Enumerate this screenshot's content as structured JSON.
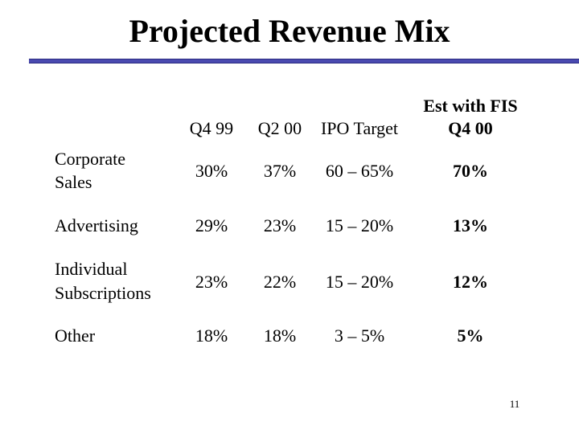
{
  "slide": {
    "title": "Projected Revenue Mix",
    "page_number": "11",
    "accent_color": "#4a4ab0"
  },
  "table": {
    "columns": [
      {
        "label": "Q4 99",
        "bold": false
      },
      {
        "label": "Q2 00",
        "bold": false
      },
      {
        "label": "IPO Target",
        "bold": false
      },
      {
        "label_line1": "Est with FIS",
        "label_line2": "Q4 00",
        "bold": true
      }
    ],
    "rows": [
      {
        "label_line1": "Corporate",
        "label_line2": "Sales",
        "values": [
          "30%",
          "37%",
          "60 – 65%",
          "70%"
        ]
      },
      {
        "label_line1": "Advertising",
        "label_line2": "",
        "values": [
          "29%",
          "23%",
          "15 – 20%",
          "13%"
        ]
      },
      {
        "label_line1": "Individual",
        "label_line2": "Subscriptions",
        "values": [
          "23%",
          "22%",
          "15 – 20%",
          "12%"
        ]
      },
      {
        "label_line1": "Other",
        "label_line2": "",
        "values": [
          "18%",
          "18%",
          "3 – 5%",
          "5%"
        ]
      }
    ]
  }
}
